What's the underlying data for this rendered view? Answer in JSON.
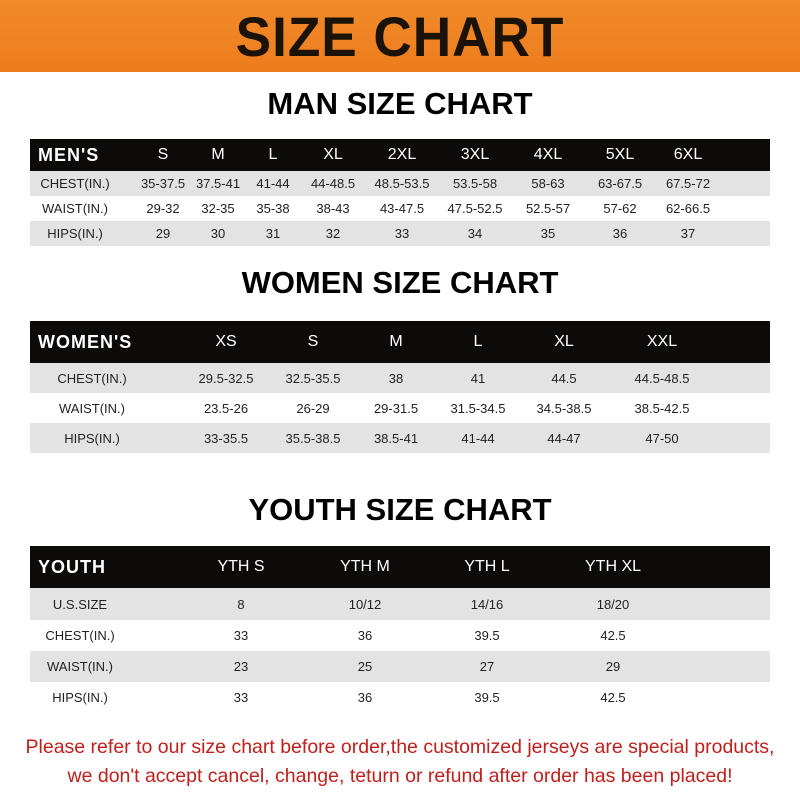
{
  "banner_title": "SIZE CHART",
  "men": {
    "title": "MAN SIZE CHART",
    "header": [
      "MEN'S",
      "S",
      "M",
      "L",
      "XL",
      "2XL",
      "3XL",
      "4XL",
      "5XL",
      "6XL"
    ],
    "rows": [
      [
        "CHEST(IN.)",
        "35-37.5",
        "37.5-41",
        "41-44",
        "44-48.5",
        "48.5-53.5",
        "53.5-58",
        "58-63",
        "63-67.5",
        "67.5-72"
      ],
      [
        "WAIST(IN.)",
        "29-32",
        "32-35",
        "35-38",
        "38-43",
        "43-47.5",
        "47.5-52.5",
        "52.5-57",
        "57-62",
        "62-66.5"
      ],
      [
        "HIPS(IN.)",
        "29",
        "30",
        "31",
        "32",
        "33",
        "34",
        "35",
        "36",
        "37"
      ]
    ]
  },
  "women": {
    "title": "WOMEN SIZE CHART",
    "header": [
      "WOMEN'S",
      "XS",
      "S",
      "M",
      "L",
      "XL",
      "XXL"
    ],
    "rows": [
      [
        "CHEST(IN.)",
        "29.5-32.5",
        "32.5-35.5",
        "38",
        "41",
        "44.5",
        "44.5-48.5"
      ],
      [
        "WAIST(IN.)",
        "23.5-26",
        "26-29",
        "29-31.5",
        "31.5-34.5",
        "34.5-38.5",
        "38.5-42.5"
      ],
      [
        "HIPS(IN.)",
        "33-35.5",
        "35.5-38.5",
        "38.5-41",
        "41-44",
        "44-47",
        "47-50"
      ]
    ]
  },
  "youth": {
    "title": "YOUTH SIZE CHART",
    "header": [
      "YOUTH",
      "YTH S",
      "YTH M",
      "YTH L",
      "YTH XL"
    ],
    "rows": [
      [
        "U.S.SIZE",
        "8",
        "10/12",
        "14/16",
        "18/20"
      ],
      [
        "CHEST(IN.)",
        "33",
        "36",
        "39.5",
        "42.5"
      ],
      [
        "WAIST(IN.)",
        "23",
        "25",
        "27",
        "29"
      ],
      [
        "HIPS(IN.)",
        "33",
        "36",
        "39.5",
        "42.5"
      ]
    ]
  },
  "note": {
    "line1": "Please refer to our size chart before order,the customized jerseys are special products,",
    "line2": "we don't accept cancel, change, teturn or refund after order has been placed!"
  }
}
